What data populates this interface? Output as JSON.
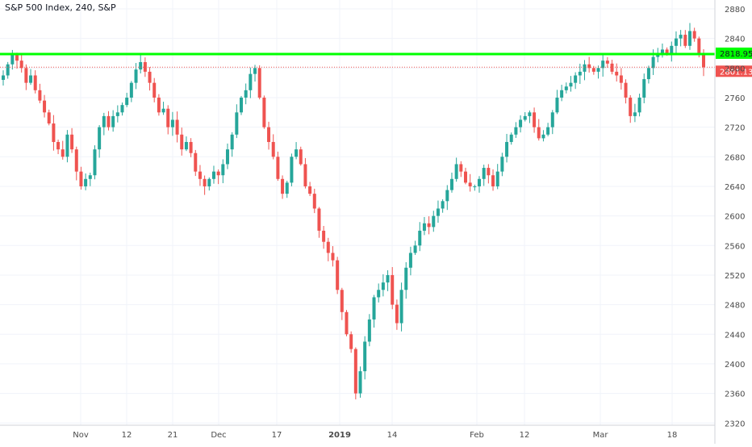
{
  "chart_data": {
    "type": "candlestick",
    "title": "S&P 500 Index, 240, S&P",
    "xlabel": "",
    "ylabel": "",
    "ylim": [
      2317,
      2892
    ],
    "y_ticks": [
      2320,
      2360,
      2400,
      2440,
      2480,
      2520,
      2560,
      2600,
      2640,
      2680,
      2720,
      2760,
      2800,
      2840,
      2880
    ],
    "x_tick_labels": [
      "Nov",
      "12",
      "21",
      "Dec",
      "17",
      "2019",
      "14",
      "Feb",
      "12",
      "Mar",
      "18"
    ],
    "grid": true,
    "colors": {
      "up": "#26a69a",
      "down": "#ef5350",
      "resistance_line": "#00ff00",
      "last_price_line": "#ef5350",
      "grid": "#f0f3fa",
      "axis_text": "#4a4a4a"
    },
    "horizontal_lines": [
      {
        "label": "2818.95",
        "value": 2818.95,
        "style": "solid",
        "color": "#00ff00"
      },
      {
        "label": "2801.13",
        "value": 2801.13,
        "style": "dotted",
        "color": "#ef5350"
      }
    ],
    "price_path": [
      2790,
      2805,
      2818,
      2810,
      2800,
      2780,
      2790,
      2770,
      2756,
      2740,
      2725,
      2700,
      2690,
      2680,
      2710,
      2690,
      2660,
      2640,
      2650,
      2655,
      2690,
      2720,
      2735,
      2720,
      2735,
      2740,
      2750,
      2760,
      2780,
      2798,
      2808,
      2795,
      2780,
      2760,
      2740,
      2745,
      2720,
      2730,
      2710,
      2690,
      2700,
      2685,
      2660,
      2650,
      2640,
      2650,
      2660,
      2655,
      2670,
      2690,
      2710,
      2740,
      2760,
      2770,
      2792,
      2800,
      2760,
      2720,
      2700,
      2680,
      2650,
      2630,
      2645,
      2680,
      2690,
      2670,
      2640,
      2630,
      2610,
      2580,
      2565,
      2550,
      2540,
      2500,
      2470,
      2440,
      2420,
      2360,
      2390,
      2430,
      2460,
      2490,
      2500,
      2510,
      2520,
      2480,
      2455,
      2500,
      2530,
      2550,
      2560,
      2580,
      2590,
      2585,
      2600,
      2610,
      2620,
      2635,
      2650,
      2670,
      2660,
      2645,
      2640,
      2640,
      2650,
      2665,
      2655,
      2640,
      2660,
      2680,
      2700,
      2710,
      2720,
      2730,
      2735,
      2740,
      2720,
      2705,
      2710,
      2720,
      2740,
      2760,
      2770,
      2775,
      2780,
      2790,
      2795,
      2805,
      2800,
      2795,
      2800,
      2810,
      2806,
      2795,
      2790,
      2780,
      2760,
      2735,
      2740,
      2760,
      2785,
      2800,
      2815,
      2820,
      2825,
      2820,
      2830,
      2840,
      2845,
      2830,
      2850,
      2840,
      2820,
      2801
    ]
  }
}
